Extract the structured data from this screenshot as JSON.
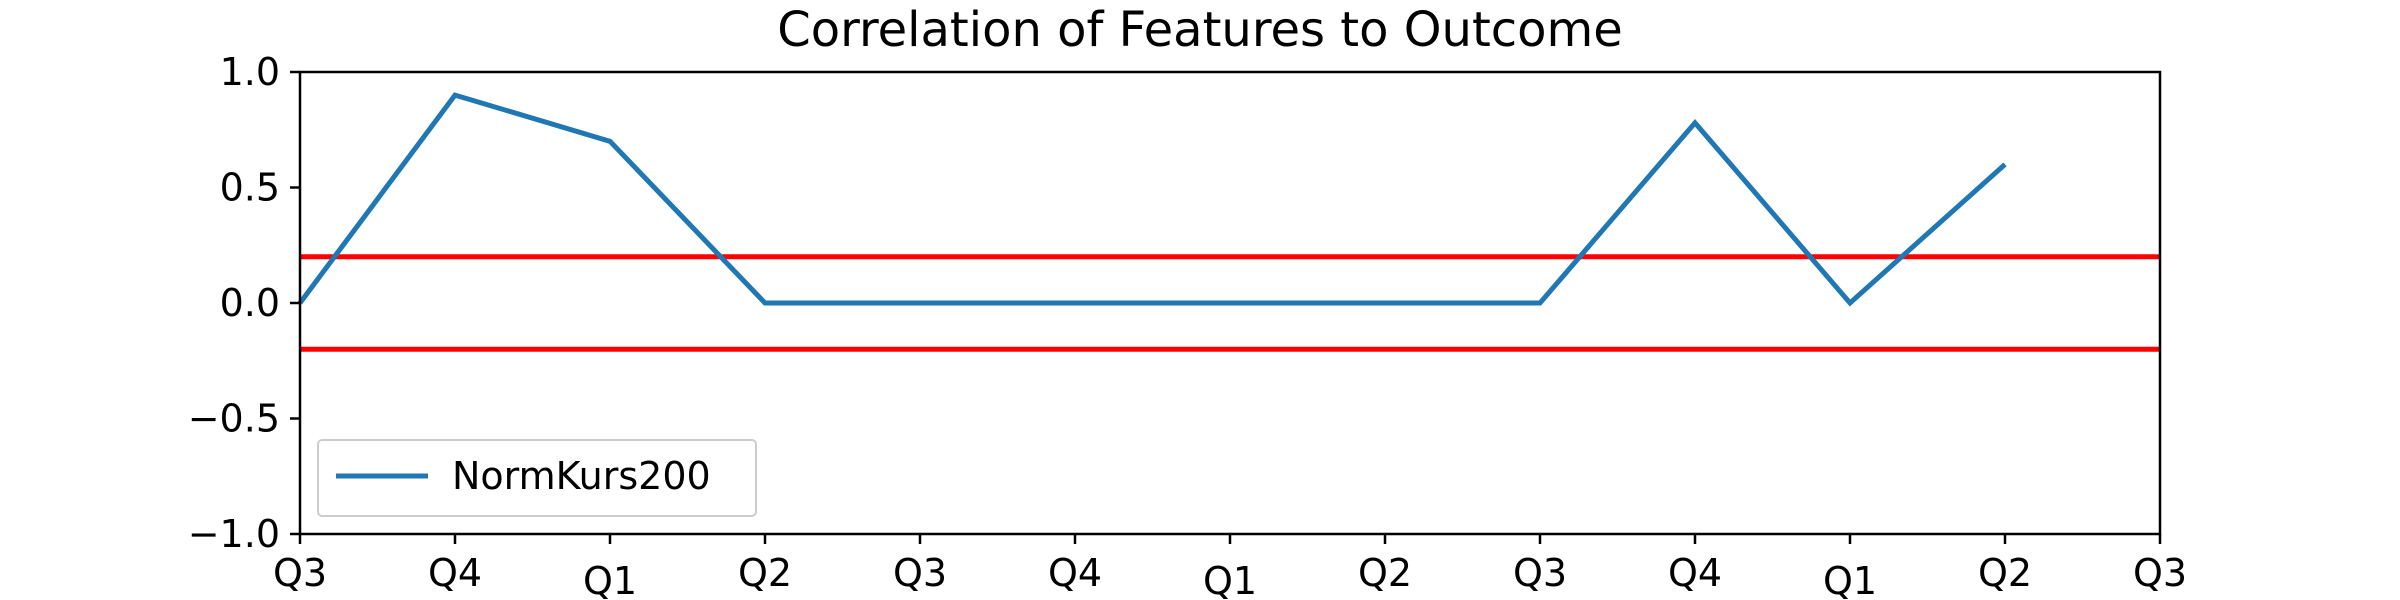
{
  "chart_data": {
    "type": "line",
    "title": "Correlation of Features to Outcome",
    "xlabel": "",
    "ylabel": "",
    "x_ticks": [
      "Q3",
      "Q4",
      "Q1",
      "Q2",
      "Q3",
      "Q4",
      "Q1",
      "Q2",
      "Q3",
      "Q4",
      "Q1",
      "Q2",
      "Q3"
    ],
    "y_ticks": [
      "1.0",
      "0.5",
      "0.0",
      "−0.5",
      "−1.0"
    ],
    "y_tick_values": [
      1.0,
      0.5,
      0.0,
      -0.5,
      -1.0
    ],
    "ylim": [
      -1.0,
      1.0
    ],
    "grid": false,
    "legend_position": "lower-left",
    "series": [
      {
        "name": "NormKurs200",
        "color": "#1f77b4",
        "x_index": [
          0,
          1,
          2,
          3,
          4,
          5,
          6,
          7,
          8,
          9,
          10,
          11
        ],
        "values": [
          0.0,
          0.9,
          0.7,
          0.0,
          0.0,
          0.0,
          0.0,
          0.0,
          0.0,
          0.78,
          0.0,
          0.6
        ]
      }
    ],
    "threshold_lines": [
      {
        "value": 0.2,
        "color": "#ff0000"
      },
      {
        "value": -0.2,
        "color": "#ff0000"
      }
    ]
  }
}
